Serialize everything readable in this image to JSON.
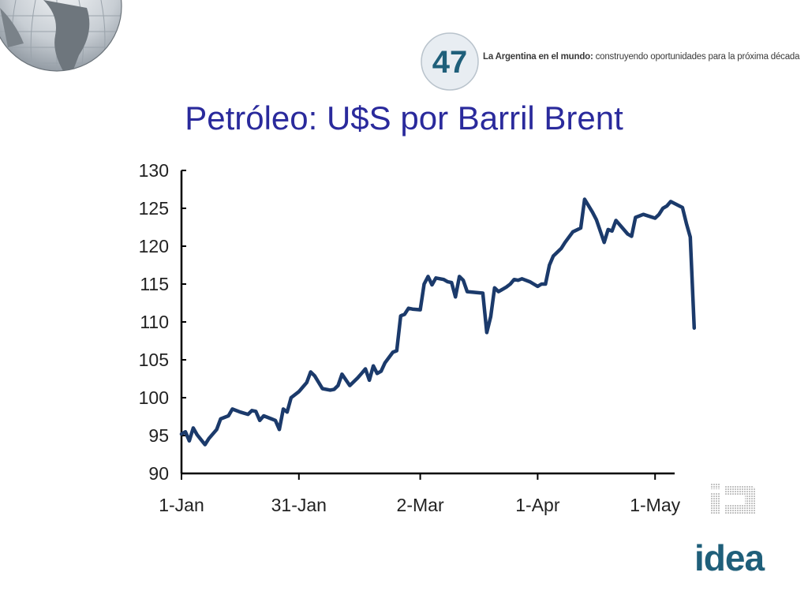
{
  "header": {
    "logo_number": "47",
    "tagline_bold": "La Argentina en el mundo:",
    "tagline_rest": " construyendo oportunidades para la próxima década"
  },
  "slide": {
    "title": "Petróleo: U$S por Barril Brent"
  },
  "footer": {
    "brand": "idea",
    "brand_color": "#1f5f7a"
  },
  "chart_data": {
    "type": "line",
    "title": "",
    "xlabel": "",
    "ylabel": "",
    "ylim": [
      90,
      130
    ],
    "yticks": [
      90,
      95,
      100,
      105,
      110,
      115,
      120,
      125,
      130
    ],
    "xlim": [
      "2008-01-01",
      "2008-05-06"
    ],
    "xticks": [
      {
        "date": "2008-01-01",
        "label": "1-Jan"
      },
      {
        "date": "2008-01-31",
        "label": "31-Jan"
      },
      {
        "date": "2008-03-02",
        "label": "2-Mar"
      },
      {
        "date": "2008-04-01",
        "label": "1-Apr"
      },
      {
        "date": "2008-05-01",
        "label": "1-May"
      }
    ],
    "grid": false,
    "line_color": "#1b3a6b",
    "series": [
      {
        "points": [
          [
            "2008-01-01",
            95.2
          ],
          [
            "2008-01-02",
            95.5
          ],
          [
            "2008-01-03",
            94.3
          ],
          [
            "2008-01-04",
            96.0
          ],
          [
            "2008-01-05",
            95.1
          ],
          [
            "2008-01-07",
            93.8
          ],
          [
            "2008-01-08",
            94.6
          ],
          [
            "2008-01-10",
            95.8
          ],
          [
            "2008-01-11",
            97.2
          ],
          [
            "2008-01-13",
            97.6
          ],
          [
            "2008-01-14",
            98.5
          ],
          [
            "2008-01-16",
            98.1
          ],
          [
            "2008-01-18",
            97.8
          ],
          [
            "2008-01-19",
            98.3
          ],
          [
            "2008-01-20",
            98.2
          ],
          [
            "2008-01-21",
            97.0
          ],
          [
            "2008-01-22",
            97.6
          ],
          [
            "2008-01-24",
            97.2
          ],
          [
            "2008-01-25",
            97.0
          ],
          [
            "2008-01-26",
            95.8
          ],
          [
            "2008-01-27",
            98.5
          ],
          [
            "2008-01-28",
            98.1
          ],
          [
            "2008-01-29",
            100.0
          ],
          [
            "2008-01-31",
            100.8
          ],
          [
            "2008-02-02",
            102.0
          ],
          [
            "2008-02-03",
            103.4
          ],
          [
            "2008-02-04",
            102.9
          ],
          [
            "2008-02-06",
            101.2
          ],
          [
            "2008-02-08",
            101.0
          ],
          [
            "2008-02-09",
            101.1
          ],
          [
            "2008-02-10",
            101.6
          ],
          [
            "2008-02-11",
            103.1
          ],
          [
            "2008-02-13",
            101.6
          ],
          [
            "2008-02-15",
            102.6
          ],
          [
            "2008-02-16",
            103.2
          ],
          [
            "2008-02-17",
            103.8
          ],
          [
            "2008-02-18",
            102.3
          ],
          [
            "2008-02-19",
            104.2
          ],
          [
            "2008-02-20",
            103.2
          ],
          [
            "2008-02-21",
            103.5
          ],
          [
            "2008-02-22",
            104.6
          ],
          [
            "2008-02-24",
            106.0
          ],
          [
            "2008-02-25",
            106.2
          ],
          [
            "2008-02-26",
            110.8
          ],
          [
            "2008-02-27",
            111.0
          ],
          [
            "2008-02-28",
            111.8
          ],
          [
            "2008-02-29",
            111.7
          ],
          [
            "2008-03-02",
            111.6
          ],
          [
            "2008-03-03",
            115.0
          ],
          [
            "2008-03-04",
            116.0
          ],
          [
            "2008-03-05",
            114.9
          ],
          [
            "2008-03-06",
            115.8
          ],
          [
            "2008-03-08",
            115.6
          ],
          [
            "2008-03-09",
            115.3
          ],
          [
            "2008-03-10",
            115.2
          ],
          [
            "2008-03-11",
            113.3
          ],
          [
            "2008-03-12",
            116.0
          ],
          [
            "2008-03-13",
            115.5
          ],
          [
            "2008-03-14",
            114.0
          ],
          [
            "2008-03-18",
            113.8
          ],
          [
            "2008-03-19",
            108.6
          ],
          [
            "2008-03-20",
            110.7
          ],
          [
            "2008-03-21",
            114.5
          ],
          [
            "2008-03-22",
            114.0
          ],
          [
            "2008-03-24",
            114.6
          ],
          [
            "2008-03-25",
            115.0
          ],
          [
            "2008-03-26",
            115.6
          ],
          [
            "2008-03-27",
            115.5
          ],
          [
            "2008-03-28",
            115.7
          ],
          [
            "2008-03-30",
            115.3
          ],
          [
            "2008-03-31",
            115.0
          ],
          [
            "2008-04-01",
            114.7
          ],
          [
            "2008-04-02",
            115.0
          ],
          [
            "2008-04-03",
            115.0
          ],
          [
            "2008-04-04",
            117.5
          ],
          [
            "2008-04-05",
            118.7
          ],
          [
            "2008-04-07",
            119.7
          ],
          [
            "2008-04-08",
            120.5
          ],
          [
            "2008-04-10",
            121.9
          ],
          [
            "2008-04-12",
            122.4
          ],
          [
            "2008-04-13",
            126.2
          ],
          [
            "2008-04-15",
            124.5
          ],
          [
            "2008-04-16",
            123.5
          ],
          [
            "2008-04-18",
            120.5
          ],
          [
            "2008-04-19",
            122.2
          ],
          [
            "2008-04-20",
            122.0
          ],
          [
            "2008-04-21",
            123.4
          ],
          [
            "2008-04-22",
            122.8
          ],
          [
            "2008-04-24",
            121.6
          ],
          [
            "2008-04-25",
            121.3
          ],
          [
            "2008-04-26",
            123.8
          ],
          [
            "2008-04-27",
            124.0
          ],
          [
            "2008-04-28",
            124.2
          ],
          [
            "2008-05-01",
            123.7
          ],
          [
            "2008-05-02",
            124.2
          ],
          [
            "2008-05-03",
            125.0
          ],
          [
            "2008-05-04",
            125.3
          ],
          [
            "2008-05-05",
            125.9
          ],
          [
            "2008-05-08",
            125.1
          ],
          [
            "2008-05-09",
            123.0
          ],
          [
            "2008-05-10",
            121.2
          ],
          [
            "2008-05-11",
            109.2
          ]
        ]
      }
    ]
  }
}
